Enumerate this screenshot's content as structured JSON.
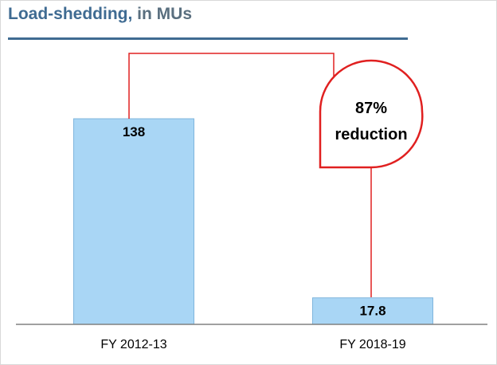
{
  "title": {
    "main": "Load-shedding,",
    "suffix": "in MUs"
  },
  "colors": {
    "title": "#3f6b92",
    "bar_fill": "#a9d6f5",
    "bar_stroke": "#7fb5dd",
    "callout": "#e02020",
    "axis": "#808080"
  },
  "callout": {
    "line1": "87%",
    "line2": "reduction"
  },
  "chart_data": {
    "type": "bar",
    "title": "Load-shedding, in MUs",
    "categories": [
      "FY 2012-13",
      "FY 2018-19"
    ],
    "values": [
      138,
      17.8
    ],
    "value_labels": [
      "138",
      "17.8"
    ],
    "xlabel": "",
    "ylabel": "",
    "ylim": [
      0,
      138
    ],
    "grid": false,
    "legend": "none"
  }
}
